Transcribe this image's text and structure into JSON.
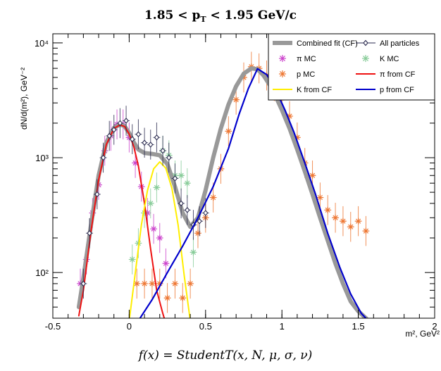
{
  "chart_data": {
    "type": "scatter",
    "title_parts": [
      "1.85 < ",
      "p",
      "T",
      " < 1.95 GeV/c"
    ],
    "ylabel": "dN/d(m²), GeV⁻²",
    "xlabel": "m², GeV²",
    "formula": "f(x) = StudentT(x, N, μ, σ, ν)",
    "xlim": [
      -0.5,
      2.0
    ],
    "ylim": [
      40,
      12000
    ],
    "yscale": "log",
    "x_ticks": [
      "-0.5",
      "0",
      "0.5",
      "1",
      "1.5",
      "2"
    ],
    "y_ticks": [
      "10²",
      "10³",
      "10⁴"
    ],
    "legend_position": "top-right",
    "legend": [
      {
        "label": "Combined fit (CF)",
        "kind": "band",
        "color": "#999999"
      },
      {
        "label": "All particles",
        "kind": "marker-diamond",
        "color": "#2b2b50"
      },
      {
        "label": "π MC",
        "kind": "marker-star",
        "color": "#cc44cc"
      },
      {
        "label": "K MC",
        "kind": "marker-star",
        "color": "#88cc99"
      },
      {
        "label": "p MC",
        "kind": "marker-star",
        "color": "#ee7733"
      },
      {
        "label": "π from CF",
        "kind": "line",
        "color": "#ee1111"
      },
      {
        "label": "K from CF",
        "kind": "line",
        "color": "#ffee00"
      },
      {
        "label": "p from CF",
        "kind": "line",
        "color": "#0000cc"
      }
    ],
    "series": [
      {
        "name": "Combined fit (CF)",
        "kind": "curve",
        "color": "#999999",
        "x": [
          -0.33,
          -0.3,
          -0.25,
          -0.2,
          -0.15,
          -0.1,
          -0.06,
          -0.03,
          0.0,
          0.03,
          0.06,
          0.1,
          0.15,
          0.2,
          0.25,
          0.3,
          0.35,
          0.4,
          0.45,
          0.5,
          0.55,
          0.6,
          0.65,
          0.7,
          0.75,
          0.8,
          0.84,
          0.88,
          0.92,
          0.96,
          1.0,
          1.05,
          1.1,
          1.15,
          1.2,
          1.25,
          1.3,
          1.35,
          1.4,
          1.45,
          1.5,
          1.55,
          1.6
        ],
        "y": [
          50,
          90,
          260,
          700,
          1350,
          1820,
          1950,
          1880,
          1640,
          1360,
          1180,
          1100,
          1080,
          1050,
          880,
          560,
          330,
          250,
          300,
          520,
          1000,
          1800,
          2900,
          4200,
          5400,
          6000,
          5900,
          5200,
          4300,
          3400,
          2600,
          1800,
          1180,
          760,
          480,
          300,
          190,
          120,
          80,
          56,
          46,
          40,
          34
        ]
      },
      {
        "name": "π from CF",
        "kind": "curve",
        "color": "#ee1111",
        "x": [
          -0.33,
          -0.3,
          -0.25,
          -0.2,
          -0.15,
          -0.1,
          -0.06,
          -0.03,
          0.0,
          0.03,
          0.06,
          0.1,
          0.14,
          0.18,
          0.22,
          0.24
        ],
        "y": [
          42,
          70,
          230,
          640,
          1300,
          1800,
          1930,
          1870,
          1610,
          1250,
          850,
          400,
          160,
          70,
          44,
          36
        ]
      },
      {
        "name": "K from CF",
        "kind": "curve",
        "color": "#ffee00",
        "x": [
          0.0,
          0.04,
          0.08,
          0.12,
          0.16,
          0.2,
          0.24,
          0.28,
          0.32,
          0.36,
          0.4
        ],
        "y": [
          38,
          100,
          260,
          520,
          800,
          920,
          810,
          540,
          260,
          95,
          38
        ]
      },
      {
        "name": "p from CF",
        "kind": "curve",
        "color": "#0000cc",
        "x": [
          0.06,
          0.15,
          0.25,
          0.35,
          0.45,
          0.55,
          0.65,
          0.72,
          0.78,
          0.84,
          0.9,
          0.96,
          1.02,
          1.08,
          1.15,
          1.22,
          1.3,
          1.38,
          1.45,
          1.52,
          1.6
        ],
        "y": [
          38,
          58,
          100,
          170,
          300,
          560,
          1200,
          2400,
          4000,
          5950,
          5300,
          3900,
          2600,
          1650,
          900,
          480,
          220,
          110,
          65,
          44,
          34
        ]
      },
      {
        "name": "All particles",
        "kind": "markers",
        "marker": "diamond",
        "color": "#2b2b50",
        "x": [
          -0.3,
          -0.26,
          -0.21,
          -0.17,
          -0.13,
          -0.1,
          -0.06,
          -0.02,
          0.02,
          0.06,
          0.1,
          0.14,
          0.18,
          0.22,
          0.26,
          0.3,
          0.34,
          0.38,
          0.42,
          0.46,
          0.5
        ],
        "y": [
          80,
          220,
          480,
          1000,
          1550,
          1750,
          2000,
          2100,
          1450,
          1600,
          1350,
          1300,
          1500,
          1150,
          1000,
          660,
          400,
          350,
          260,
          280,
          330
        ]
      },
      {
        "name": "π MC",
        "kind": "markers",
        "marker": "star",
        "color": "#cc44cc",
        "x": [
          -0.32,
          -0.28,
          -0.24,
          -0.2,
          -0.16,
          -0.12,
          -0.08,
          -0.04,
          0.0,
          0.04,
          0.08,
          0.12,
          0.16,
          0.2,
          0.24
        ],
        "y": [
          80,
          130,
          330,
          580,
          1150,
          1550,
          1950,
          1950,
          1500,
          900,
          560,
          330,
          240,
          200,
          120
        ]
      },
      {
        "name": "K MC",
        "kind": "markers",
        "marker": "star",
        "color": "#88cc99",
        "x": [
          0.02,
          0.06,
          0.1,
          0.14,
          0.18,
          0.22,
          0.26,
          0.3,
          0.34,
          0.38,
          0.42
        ],
        "y": [
          130,
          180,
          330,
          400,
          550,
          1150,
          1050,
          700,
          700,
          600,
          150
        ]
      },
      {
        "name": "p MC",
        "kind": "markers",
        "marker": "star",
        "color": "#ee7733",
        "x": [
          0.05,
          0.1,
          0.15,
          0.2,
          0.25,
          0.3,
          0.35,
          0.4,
          0.45,
          0.5,
          0.55,
          0.6,
          0.65,
          0.7,
          0.75,
          0.8,
          0.85,
          0.9,
          0.95,
          1.0,
          1.05,
          1.1,
          1.15,
          1.2,
          1.25,
          1.3,
          1.35,
          1.4,
          1.45,
          1.5,
          1.55
        ],
        "y": [
          80,
          80,
          80,
          80,
          60,
          80,
          60,
          80,
          220,
          300,
          450,
          800,
          1700,
          3200,
          5000,
          6200,
          6000,
          5200,
          4200,
          3300,
          2300,
          1500,
          900,
          700,
          450,
          350,
          300,
          280,
          250,
          280,
          230
        ]
      }
    ]
  }
}
